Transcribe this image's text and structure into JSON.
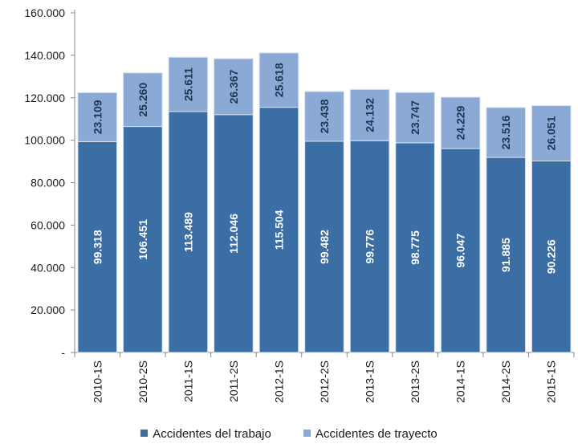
{
  "chart_data": {
    "type": "bar",
    "stacked": true,
    "title": "",
    "xlabel": "",
    "ylabel": "",
    "ylim": [
      0,
      160000
    ],
    "yticks": [
      "-",
      "20.000",
      "40.000",
      "60.000",
      "80.000",
      "100.000",
      "120.000",
      "140.000",
      "160.000"
    ],
    "categories": [
      "2010-1S",
      "2010-2S",
      "2011-1S",
      "2011-2S",
      "2012-1S",
      "2012-2S",
      "2013-1S",
      "2013-2S",
      "2014-1S",
      "2014-2S",
      "2015-1S"
    ],
    "series": [
      {
        "name": "Accidentes del trabajo",
        "color": "#3b6ea5",
        "values": [
          99318,
          106451,
          113489,
          112046,
          115504,
          99482,
          99776,
          98775,
          96047,
          91885,
          90226
        ],
        "labels": [
          "99.318",
          "106.451",
          "113.489",
          "112.046",
          "115.504",
          "99.482",
          "99.776",
          "98.775",
          "96.047",
          "91.885",
          "90.226"
        ]
      },
      {
        "name": "Accidentes de trayecto",
        "color": "#8aa9d4",
        "values": [
          23109,
          25260,
          25611,
          26367,
          25618,
          23438,
          24132,
          23747,
          24229,
          23516,
          26051
        ],
        "labels": [
          "23.109",
          "25.260",
          "25.611",
          "26.367",
          "25.618",
          "23.438",
          "24.132",
          "23.747",
          "24.229",
          "23.516",
          "26.051"
        ]
      }
    ],
    "grid": false,
    "legend_position": "bottom"
  }
}
